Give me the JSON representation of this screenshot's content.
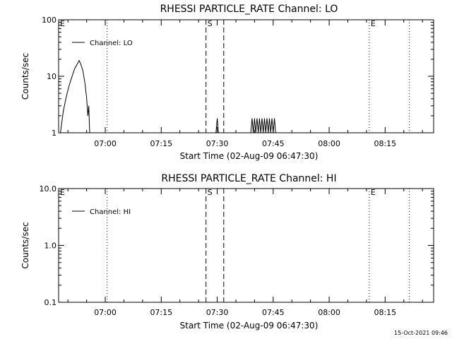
{
  "footer_timestamp": "15-Oct-2021 09:46",
  "chart_data": [
    {
      "type": "line",
      "title": "RHESSI PARTICLE_RATE Channel: LO",
      "xlabel": "Start Time (02-Aug-09 06:47:30)",
      "ylabel": "Counts/sec",
      "yscale": "log",
      "ylim": [
        1,
        100
      ],
      "xlim": [
        "06:47:30",
        "08:28:00"
      ],
      "x_ticks": [
        "07:00",
        "07:15",
        "07:30",
        "07:45",
        "08:00",
        "08:15"
      ],
      "y_ticks": [
        "1",
        "10",
        "100"
      ],
      "legend": {
        "position": "top-left",
        "entries": [
          "Channel: LO"
        ]
      },
      "markers": [
        {
          "label": "E",
          "time": "06:47:30",
          "style": "none"
        },
        {
          "label": "",
          "time": "07:00:30",
          "style": "dotted"
        },
        {
          "label": "S",
          "time": "07:27:00",
          "style": "dashed"
        },
        {
          "label": "",
          "time": "07:31:45",
          "style": "dashed"
        },
        {
          "label": "E",
          "time": "08:10:45",
          "style": "dotted"
        },
        {
          "label": "",
          "time": "08:21:30",
          "style": "dotted"
        }
      ],
      "series": [
        {
          "name": "Channel: LO",
          "segments": [
            [
              [
                "06:48:00",
                1.0
              ],
              [
                "06:48:45",
                2.4
              ],
              [
                "06:49:30",
                4.2
              ],
              [
                "06:50:15",
                6.6
              ],
              [
                "06:51:00",
                9.5
              ],
              [
                "06:51:45",
                13.5
              ],
              [
                "06:52:30",
                16.5
              ],
              [
                "06:53:00",
                19.0
              ],
              [
                "06:53:30",
                16.0
              ],
              [
                "06:54:00",
                12.5
              ],
              [
                "06:54:30",
                8.0
              ],
              [
                "06:55:00",
                4.2
              ],
              [
                "06:55:20",
                2.0
              ],
              [
                "06:55:35",
                3.0
              ],
              [
                "06:55:50",
                1.0
              ]
            ],
            [
              [
                "07:29:40",
                1.0
              ],
              [
                "07:30:00",
                1.8
              ],
              [
                "07:30:20",
                1.0
              ]
            ],
            [
              [
                "07:39:00",
                1.0
              ],
              [
                "07:39:20",
                1.8
              ],
              [
                "07:39:40",
                1.0
              ],
              [
                "07:40:00",
                1.8
              ],
              [
                "07:40:20",
                1.0
              ],
              [
                "07:40:40",
                1.8
              ],
              [
                "07:41:00",
                1.0
              ],
              [
                "07:41:20",
                1.8
              ],
              [
                "07:41:40",
                1.0
              ],
              [
                "07:42:00",
                1.8
              ],
              [
                "07:42:20",
                1.0
              ],
              [
                "07:42:40",
                1.8
              ],
              [
                "07:43:00",
                1.0
              ],
              [
                "07:43:20",
                1.8
              ],
              [
                "07:43:40",
                1.0
              ],
              [
                "07:44:00",
                1.8
              ],
              [
                "07:44:20",
                1.0
              ],
              [
                "07:44:40",
                1.8
              ],
              [
                "07:45:00",
                1.0
              ],
              [
                "07:45:20",
                1.8
              ],
              [
                "07:45:40",
                1.0
              ]
            ]
          ]
        }
      ]
    },
    {
      "type": "line",
      "title": "RHESSI PARTICLE_RATE Channel: HI",
      "xlabel": "Start Time (02-Aug-09 06:47:30)",
      "ylabel": "Counts/sec",
      "yscale": "log",
      "ylim": [
        0.1,
        10
      ],
      "xlim": [
        "06:47:30",
        "08:28:00"
      ],
      "x_ticks": [
        "07:00",
        "07:15",
        "07:30",
        "07:45",
        "08:00",
        "08:15"
      ],
      "y_ticks": [
        "0.1",
        "1.0",
        "10.0"
      ],
      "legend": {
        "position": "top-left",
        "entries": [
          "Channel: HI"
        ]
      },
      "markers": [
        {
          "label": "E",
          "time": "06:47:30",
          "style": "none"
        },
        {
          "label": "",
          "time": "07:00:30",
          "style": "dotted"
        },
        {
          "label": "S",
          "time": "07:27:00",
          "style": "dashed"
        },
        {
          "label": "",
          "time": "07:31:45",
          "style": "dashed"
        },
        {
          "label": "E",
          "time": "08:10:45",
          "style": "dotted"
        },
        {
          "label": "",
          "time": "08:21:30",
          "style": "dotted"
        }
      ],
      "series": [
        {
          "name": "Channel: HI",
          "segments": []
        }
      ]
    }
  ]
}
